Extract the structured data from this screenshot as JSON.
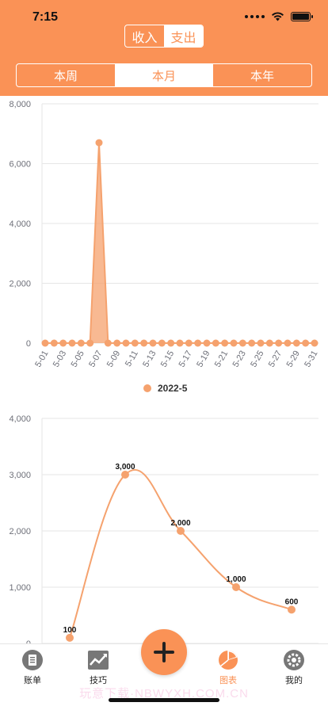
{
  "status": {
    "time": "7:15"
  },
  "header": {
    "toggle": [
      {
        "label": "收入",
        "active": false
      },
      {
        "label": "支出",
        "active": true
      }
    ],
    "periods": [
      {
        "label": "本周",
        "active": false
      },
      {
        "label": "本月",
        "active": true
      },
      {
        "label": "本年",
        "active": false
      }
    ]
  },
  "colors": {
    "accent": "#fa9256",
    "line": "#f5a26e"
  },
  "chart_data": [
    {
      "type": "area",
      "x": [
        "5-01",
        "5-02",
        "5-03",
        "5-04",
        "5-05",
        "5-06",
        "5-07",
        "5-08",
        "5-09",
        "5-10",
        "5-11",
        "5-12",
        "5-13",
        "5-14",
        "5-15",
        "5-16",
        "5-17",
        "5-18",
        "5-19",
        "5-20",
        "5-21",
        "5-22",
        "5-23",
        "5-24",
        "5-25",
        "5-26",
        "5-27",
        "5-28",
        "5-29",
        "5-30",
        "5-31"
      ],
      "tick_labels": [
        "5-01",
        "5-03",
        "5-05",
        "5-07",
        "5-09",
        "5-11",
        "5-13",
        "5-15",
        "5-17",
        "5-19",
        "5-21",
        "5-23",
        "5-25",
        "5-27",
        "5-29",
        "5-31"
      ],
      "series": [
        {
          "name": "2022-5",
          "values": [
            0,
            0,
            0,
            0,
            0,
            0,
            6700,
            0,
            0,
            0,
            0,
            0,
            0,
            0,
            0,
            0,
            0,
            0,
            0,
            0,
            0,
            0,
            0,
            0,
            0,
            0,
            0,
            0,
            0,
            0,
            0
          ]
        }
      ],
      "yticks": [
        "0",
        "2,000",
        "4,000",
        "6,000",
        "8,000"
      ],
      "ylim": [
        0,
        8000
      ],
      "legend": "bottom-center",
      "grid": true
    },
    {
      "type": "line",
      "x": [
        1,
        2,
        3,
        4,
        5
      ],
      "series": [
        {
          "values": [
            100,
            3000,
            2000,
            1000,
            600
          ],
          "labels": [
            "100",
            "3,000",
            "2,000",
            "1,000",
            "600"
          ]
        }
      ],
      "yticks": [
        "0",
        "1,000",
        "2,000",
        "3,000",
        "4,000"
      ],
      "ylim": [
        0,
        4000
      ],
      "grid": true
    }
  ],
  "tabbar": {
    "items": [
      {
        "label": "账单",
        "icon": "bill-icon",
        "active": false
      },
      {
        "label": "技巧",
        "icon": "trend-icon",
        "active": false
      },
      {
        "label": "图表",
        "icon": "pie-chart-icon",
        "active": true
      },
      {
        "label": "我的",
        "icon": "settings-icon",
        "active": false
      }
    ],
    "add_icon": "plus-icon"
  },
  "watermark": "玩意下载·NBWYXH.COM.CN"
}
